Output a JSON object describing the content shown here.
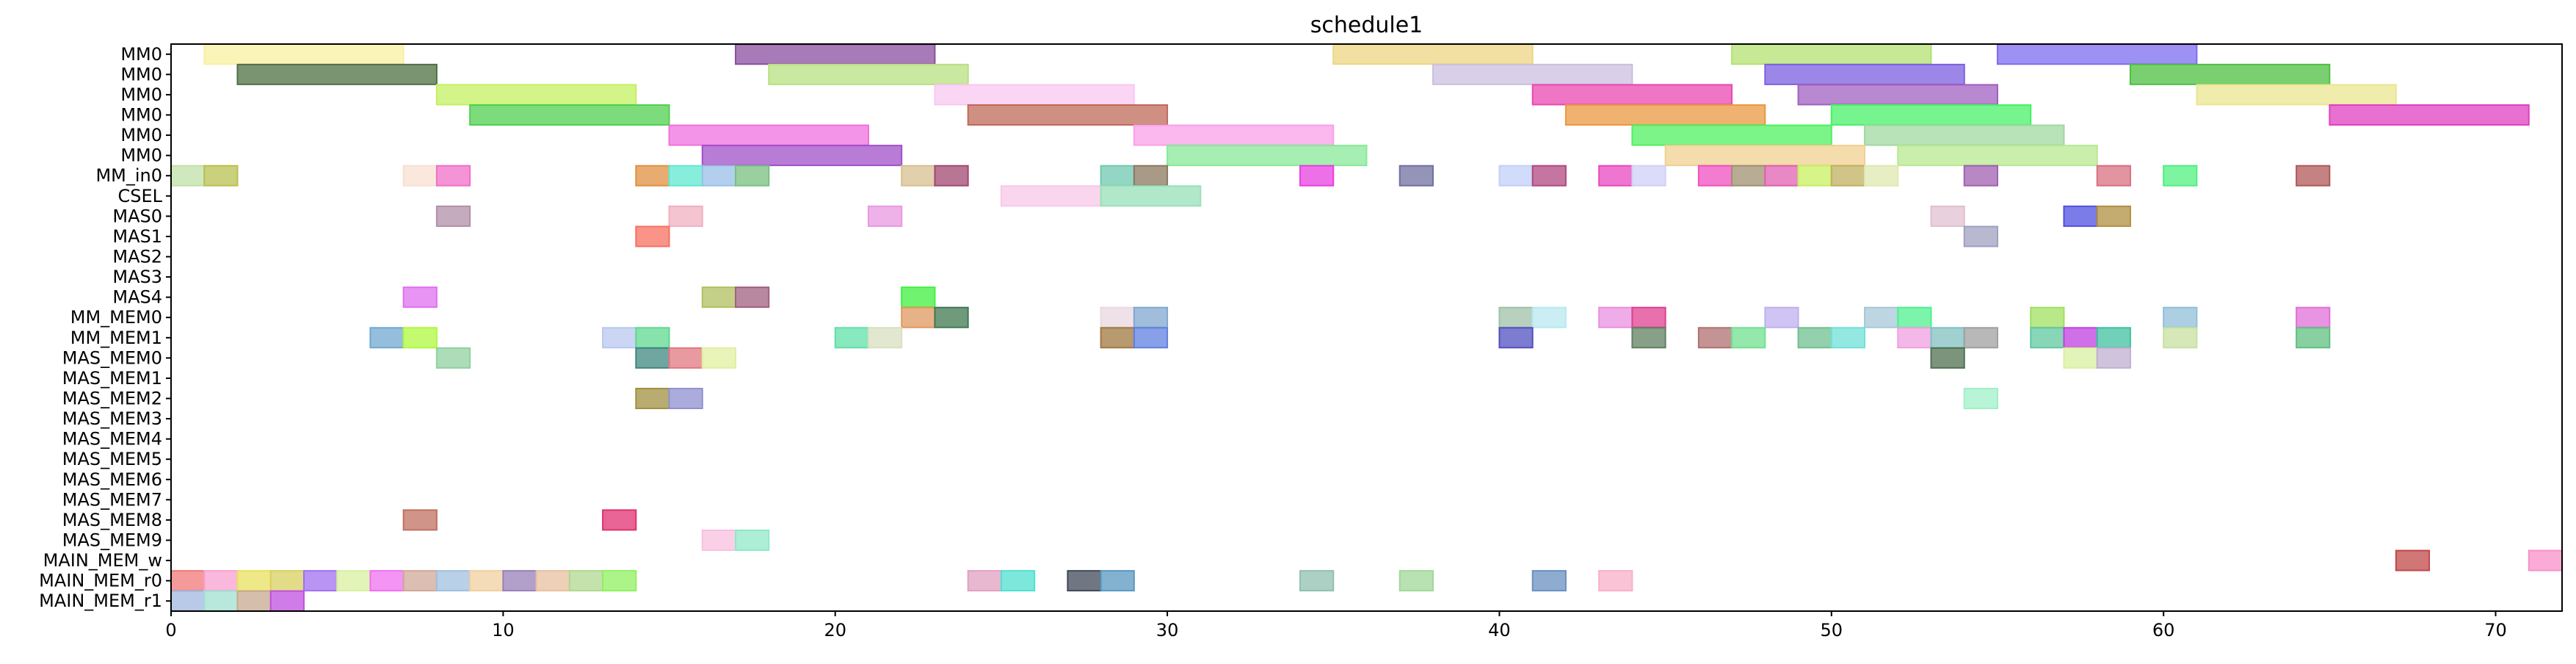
{
  "chart_data": {
    "type": "gantt",
    "title": "schedule1",
    "xlabel": "",
    "ylabel": "",
    "xlim": [
      0,
      72
    ],
    "grid": false,
    "rows": [
      "MM0",
      "MM0",
      "MM0",
      "MM0",
      "MM0",
      "MM0",
      "MM_in0",
      "CSEL",
      "MAS0",
      "MAS1",
      "MAS2",
      "MAS3",
      "MAS4",
      "MM_MEM0",
      "MM_MEM1",
      "MAS_MEM0",
      "MAS_MEM1",
      "MAS_MEM2",
      "MAS_MEM3",
      "MAS_MEM4",
      "MAS_MEM5",
      "MAS_MEM6",
      "MAS_MEM7",
      "MAS_MEM8",
      "MAS_MEM9",
      "MAIN_MEM_w",
      "MAIN_MEM_r0",
      "MAIN_MEM_r1"
    ],
    "xticks": [
      0,
      10,
      20,
      30,
      40,
      50,
      60,
      70
    ],
    "tasks": [
      {
        "row": 0,
        "start": 1,
        "end": 7,
        "color": "#f8f0a0"
      },
      {
        "row": 0,
        "start": 17,
        "end": 23,
        "color": "#8a4fa0"
      },
      {
        "row": 0,
        "start": 35,
        "end": 41,
        "color": "#ecd682"
      },
      {
        "row": 0,
        "start": 47,
        "end": 53,
        "color": "#b4e070"
      },
      {
        "row": 0,
        "start": 55,
        "end": 61,
        "color": "#7e6cf0"
      },
      {
        "row": 1,
        "start": 2,
        "end": 8,
        "color": "#4e7043"
      },
      {
        "row": 1,
        "start": 18,
        "end": 24,
        "color": "#b8e080"
      },
      {
        "row": 1,
        "start": 38,
        "end": 44,
        "color": "#cbbfe0"
      },
      {
        "row": 1,
        "start": 48,
        "end": 54,
        "color": "#7b5fe0"
      },
      {
        "row": 1,
        "start": 59,
        "end": 65,
        "color": "#4ec040"
      },
      {
        "row": 2,
        "start": 8,
        "end": 14,
        "color": "#c4f060"
      },
      {
        "row": 2,
        "start": 23,
        "end": 29,
        "color": "#f8c8f0"
      },
      {
        "row": 2,
        "start": 41,
        "end": 47,
        "color": "#e848b0"
      },
      {
        "row": 2,
        "start": 49,
        "end": 55,
        "color": "#a060c0"
      },
      {
        "row": 2,
        "start": 61,
        "end": 67,
        "color": "#eae590"
      },
      {
        "row": 3,
        "start": 9,
        "end": 15,
        "color": "#50d050"
      },
      {
        "row": 3,
        "start": 24,
        "end": 30,
        "color": "#c06a5a"
      },
      {
        "row": 3,
        "start": 42,
        "end": 48,
        "color": "#eb9840"
      },
      {
        "row": 3,
        "start": 50,
        "end": 56,
        "color": "#48f068"
      },
      {
        "row": 3,
        "start": 65,
        "end": 71,
        "color": "#e040c0"
      },
      {
        "row": 4,
        "start": 15,
        "end": 21,
        "color": "#f070e0"
      },
      {
        "row": 4,
        "start": 29,
        "end": 35,
        "color": "#f8a0e8"
      },
      {
        "row": 4,
        "start": 44,
        "end": 50,
        "color": "#50f060"
      },
      {
        "row": 4,
        "start": 51,
        "end": 57,
        "color": "#a0d8a0"
      },
      {
        "row": 5,
        "start": 16,
        "end": 22,
        "color": "#a050c8"
      },
      {
        "row": 5,
        "start": 30,
        "end": 36,
        "color": "#88e898"
      },
      {
        "row": 5,
        "start": 45,
        "end": 51,
        "color": "#f0d090"
      },
      {
        "row": 5,
        "start": 52,
        "end": 58,
        "color": "#b8e890"
      },
      {
        "row": 6,
        "start": 0,
        "end": 1,
        "color": "#c0e0a8"
      },
      {
        "row": 6,
        "start": 1,
        "end": 2,
        "color": "#b8c050"
      },
      {
        "row": 6,
        "start": 7,
        "end": 8,
        "color": "#f8e0d0"
      },
      {
        "row": 6,
        "start": 8,
        "end": 9,
        "color": "#f070c8"
      },
      {
        "row": 6,
        "start": 14,
        "end": 15,
        "color": "#e09040"
      },
      {
        "row": 6,
        "start": 15,
        "end": 16,
        "color": "#60e8d0"
      },
      {
        "row": 6,
        "start": 16,
        "end": 17,
        "color": "#98c0e8"
      },
      {
        "row": 6,
        "start": 17,
        "end": 18,
        "color": "#78c080"
      },
      {
        "row": 6,
        "start": 22,
        "end": 23,
        "color": "#d8c090"
      },
      {
        "row": 6,
        "start": 23,
        "end": 24,
        "color": "#a04870"
      },
      {
        "row": 6,
        "start": 28,
        "end": 29,
        "color": "#70c8b0"
      },
      {
        "row": 6,
        "start": 29,
        "end": 30,
        "color": "#8c7860"
      },
      {
        "row": 6,
        "start": 34,
        "end": 35,
        "color": "#e840e0"
      },
      {
        "row": 6,
        "start": 37,
        "end": 38,
        "color": "#7070a0"
      },
      {
        "row": 6,
        "start": 40,
        "end": 41,
        "color": "#c0d0f8"
      },
      {
        "row": 6,
        "start": 41,
        "end": 42,
        "color": "#b04880"
      },
      {
        "row": 6,
        "start": 43,
        "end": 44,
        "color": "#e848c0"
      },
      {
        "row": 6,
        "start": 44,
        "end": 45,
        "color": "#d0d0f8"
      },
      {
        "row": 6,
        "start": 46,
        "end": 47,
        "color": "#f050c0"
      },
      {
        "row": 6,
        "start": 47,
        "end": 48,
        "color": "#a09070"
      },
      {
        "row": 6,
        "start": 48,
        "end": 49,
        "color": "#e060b0"
      },
      {
        "row": 6,
        "start": 49,
        "end": 50,
        "color": "#c8f060"
      },
      {
        "row": 6,
        "start": 50,
        "end": 51,
        "color": "#c0b060"
      },
      {
        "row": 6,
        "start": 51,
        "end": 52,
        "color": "#e0e8b0"
      },
      {
        "row": 6,
        "start": 54,
        "end": 55,
        "color": "#a060b0"
      },
      {
        "row": 6,
        "start": 58,
        "end": 59,
        "color": "#d87080"
      },
      {
        "row": 6,
        "start": 60,
        "end": 61,
        "color": "#50f080"
      },
      {
        "row": 6,
        "start": 64,
        "end": 65,
        "color": "#b05858"
      },
      {
        "row": 7,
        "start": 25,
        "end": 28,
        "color": "#f8c8e8"
      },
      {
        "row": 7,
        "start": 28,
        "end": 31,
        "color": "#98e0b8"
      },
      {
        "row": 8,
        "start": 8,
        "end": 9,
        "color": "#b090a8"
      },
      {
        "row": 8,
        "start": 15,
        "end": 16,
        "color": "#f0b0c0"
      },
      {
        "row": 8,
        "start": 21,
        "end": 22,
        "color": "#e898e0"
      },
      {
        "row": 8,
        "start": 53,
        "end": 54,
        "color": "#e0c0d0"
      },
      {
        "row": 8,
        "start": 57,
        "end": 58,
        "color": "#5050e0"
      },
      {
        "row": 8,
        "start": 58,
        "end": 59,
        "color": "#b09040"
      },
      {
        "row": 9,
        "start": 14,
        "end": 15,
        "color": "#f87060"
      },
      {
        "row": 9,
        "start": 54,
        "end": 55,
        "color": "#a0a0c0"
      },
      {
        "row": 12,
        "start": 7,
        "end": 8,
        "color": "#e070f0"
      },
      {
        "row": 12,
        "start": 16,
        "end": 17,
        "color": "#b0c060"
      },
      {
        "row": 12,
        "start": 17,
        "end": 18,
        "color": "#a06080"
      },
      {
        "row": 12,
        "start": 22,
        "end": 23,
        "color": "#40f040"
      },
      {
        "row": 13,
        "start": 22,
        "end": 23,
        "color": "#e09860"
      },
      {
        "row": 13,
        "start": 23,
        "end": 24,
        "color": "#407850"
      },
      {
        "row": 13,
        "start": 28,
        "end": 29,
        "color": "#e8d8e0"
      },
      {
        "row": 13,
        "start": 29,
        "end": 30,
        "color": "#80a8d0"
      },
      {
        "row": 13,
        "start": 40,
        "end": 41,
        "color": "#a0c0a8"
      },
      {
        "row": 13,
        "start": 41,
        "end": 42,
        "color": "#b8e8f0"
      },
      {
        "row": 13,
        "start": 43,
        "end": 44,
        "color": "#e890e0"
      },
      {
        "row": 13,
        "start": 44,
        "end": 45,
        "color": "#e04090"
      },
      {
        "row": 13,
        "start": 48,
        "end": 49,
        "color": "#c0b0f0"
      },
      {
        "row": 13,
        "start": 51,
        "end": 52,
        "color": "#a8c8d8"
      },
      {
        "row": 13,
        "start": 52,
        "end": 53,
        "color": "#50f090"
      },
      {
        "row": 13,
        "start": 56,
        "end": 57,
        "color": "#a0e060"
      },
      {
        "row": 13,
        "start": 60,
        "end": 61,
        "color": "#90c0d8"
      },
      {
        "row": 13,
        "start": 64,
        "end": 65,
        "color": "#e070d8"
      },
      {
        "row": 14,
        "start": 6,
        "end": 7,
        "color": "#70a8d0"
      },
      {
        "row": 14,
        "start": 7,
        "end": 8,
        "color": "#b0f840"
      },
      {
        "row": 14,
        "start": 13,
        "end": 14,
        "color": "#b8c8f0"
      },
      {
        "row": 14,
        "start": 14,
        "end": 15,
        "color": "#60d890"
      },
      {
        "row": 14,
        "start": 20,
        "end": 21,
        "color": "#60e0a8"
      },
      {
        "row": 14,
        "start": 21,
        "end": 22,
        "color": "#d8e0c0"
      },
      {
        "row": 14,
        "start": 28,
        "end": 29,
        "color": "#a07840"
      },
      {
        "row": 14,
        "start": 29,
        "end": 30,
        "color": "#6080e0"
      },
      {
        "row": 14,
        "start": 40,
        "end": 41,
        "color": "#5050c0"
      },
      {
        "row": 14,
        "start": 44,
        "end": 45,
        "color": "#608060"
      },
      {
        "row": 14,
        "start": 46,
        "end": 47,
        "color": "#b07070"
      },
      {
        "row": 14,
        "start": 47,
        "end": 48,
        "color": "#70e090"
      },
      {
        "row": 14,
        "start": 49,
        "end": 50,
        "color": "#70c090"
      },
      {
        "row": 14,
        "start": 50,
        "end": 51,
        "color": "#70e0d8"
      },
      {
        "row": 14,
        "start": 52,
        "end": 53,
        "color": "#f0a0e0"
      },
      {
        "row": 14,
        "start": 53,
        "end": 54,
        "color": "#80c0c0"
      },
      {
        "row": 14,
        "start": 54,
        "end": 55,
        "color": "#a0a0a0"
      },
      {
        "row": 14,
        "start": 56,
        "end": 57,
        "color": "#60c8a0"
      },
      {
        "row": 14,
        "start": 57,
        "end": 58,
        "color": "#c040e0"
      },
      {
        "row": 14,
        "start": 58,
        "end": 59,
        "color": "#40c0a0"
      },
      {
        "row": 14,
        "start": 60,
        "end": 61,
        "color": "#c8e0a0"
      },
      {
        "row": 14,
        "start": 64,
        "end": 65,
        "color": "#60c080"
      },
      {
        "row": 15,
        "start": 8,
        "end": 9,
        "color": "#90d0a0"
      },
      {
        "row": 15,
        "start": 14,
        "end": 15,
        "color": "#408880"
      },
      {
        "row": 15,
        "start": 15,
        "end": 16,
        "color": "#e07880"
      },
      {
        "row": 15,
        "start": 16,
        "end": 17,
        "color": "#e0f0a0"
      },
      {
        "row": 15,
        "start": 53,
        "end": 54,
        "color": "#507050"
      },
      {
        "row": 15,
        "start": 57,
        "end": 58,
        "color": "#d8f0a0"
      },
      {
        "row": 15,
        "start": 58,
        "end": 59,
        "color": "#c0b0d0"
      },
      {
        "row": 17,
        "start": 14,
        "end": 15,
        "color": "#a09040"
      },
      {
        "row": 17,
        "start": 15,
        "end": 16,
        "color": "#9090d0"
      },
      {
        "row": 17,
        "start": 54,
        "end": 55,
        "color": "#a0f0c8"
      },
      {
        "row": 23,
        "start": 7,
        "end": 8,
        "color": "#c07060"
      },
      {
        "row": 23,
        "start": 13,
        "end": 14,
        "color": "#e03070"
      },
      {
        "row": 24,
        "start": 16,
        "end": 17,
        "color": "#f8c0e0"
      },
      {
        "row": 24,
        "start": 17,
        "end": 18,
        "color": "#90e8c8"
      },
      {
        "row": 25,
        "start": 67,
        "end": 68,
        "color": "#c04848"
      },
      {
        "row": 25,
        "start": 71,
        "end": 72,
        "color": "#f890c8"
      },
      {
        "row": 26,
        "start": 0,
        "end": 1,
        "color": "#f07878"
      },
      {
        "row": 26,
        "start": 1,
        "end": 2,
        "color": "#f8a0d0"
      },
      {
        "row": 26,
        "start": 2,
        "end": 3,
        "color": "#e8e060"
      },
      {
        "row": 26,
        "start": 3,
        "end": 4,
        "color": "#d8d060"
      },
      {
        "row": 26,
        "start": 4,
        "end": 5,
        "color": "#a070f0"
      },
      {
        "row": 26,
        "start": 5,
        "end": 6,
        "color": "#d8f0a0"
      },
      {
        "row": 26,
        "start": 6,
        "end": 7,
        "color": "#f070f0"
      },
      {
        "row": 26,
        "start": 7,
        "end": 8,
        "color": "#d0a898"
      },
      {
        "row": 26,
        "start": 8,
        "end": 9,
        "color": "#a0c0e0"
      },
      {
        "row": 26,
        "start": 9,
        "end": 10,
        "color": "#f0d0a0"
      },
      {
        "row": 26,
        "start": 10,
        "end": 11,
        "color": "#9880b8"
      },
      {
        "row": 26,
        "start": 11,
        "end": 12,
        "color": "#e8c0a0"
      },
      {
        "row": 26,
        "start": 12,
        "end": 13,
        "color": "#b0d890"
      },
      {
        "row": 26,
        "start": 13,
        "end": 14,
        "color": "#90f060"
      },
      {
        "row": 26,
        "start": 24,
        "end": 25,
        "color": "#e0a0c0"
      },
      {
        "row": 26,
        "start": 25,
        "end": 26,
        "color": "#50e0d0"
      },
      {
        "row": 26,
        "start": 27,
        "end": 28,
        "color": "#404858"
      },
      {
        "row": 26,
        "start": 28,
        "end": 29,
        "color": "#5898c0"
      },
      {
        "row": 26,
        "start": 34,
        "end": 35,
        "color": "#90c0b0"
      },
      {
        "row": 26,
        "start": 37,
        "end": 38,
        "color": "#a0d898"
      },
      {
        "row": 26,
        "start": 41,
        "end": 42,
        "color": "#6890c0"
      },
      {
        "row": 26,
        "start": 43,
        "end": 44,
        "color": "#f8b0c8"
      },
      {
        "row": 27,
        "start": 0,
        "end": 1,
        "color": "#a0b8e0"
      },
      {
        "row": 27,
        "start": 1,
        "end": 2,
        "color": "#a0e0d0"
      },
      {
        "row": 27,
        "start": 2,
        "end": 3,
        "color": "#c8a890"
      },
      {
        "row": 27,
        "start": 3,
        "end": 4,
        "color": "#c050e0"
      }
    ]
  }
}
